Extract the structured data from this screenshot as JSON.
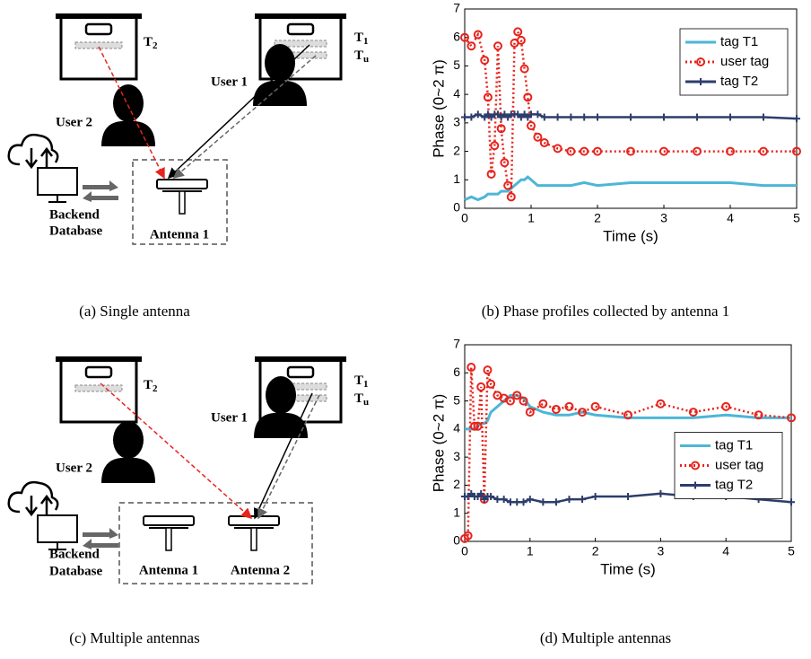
{
  "chart_data": [
    {
      "type": "line",
      "xlabel": "Time (s)",
      "ylabel": "Phase (0~2 π)",
      "x": [
        0,
        0.1,
        0.2,
        0.3,
        0.35,
        0.4,
        0.45,
        0.5,
        0.55,
        0.6,
        0.65,
        0.7,
        0.75,
        0.8,
        0.85,
        0.9,
        0.95,
        1.0,
        1.1,
        1.2,
        1.4,
        1.6,
        1.8,
        2.0,
        2.5,
        3.0,
        3.5,
        4.0,
        4.5,
        5.0
      ],
      "series": [
        {
          "name": "tag T1",
          "color": "#4cb6d6",
          "marker": "none",
          "line_style": "solid",
          "values": [
            0.3,
            0.4,
            0.3,
            0.4,
            0.5,
            0.5,
            0.5,
            0.5,
            0.6,
            0.6,
            0.6,
            0.7,
            0.8,
            0.9,
            1.0,
            1.0,
            1.1,
            1.0,
            0.8,
            0.8,
            0.8,
            0.8,
            0.9,
            0.8,
            0.9,
            0.9,
            0.9,
            0.9,
            0.8,
            0.8
          ]
        },
        {
          "name": "user tag",
          "color": "#e8231c",
          "marker": "o",
          "line_style": "dotted",
          "values": [
            6.0,
            5.7,
            6.1,
            5.2,
            3.9,
            1.2,
            2.2,
            5.7,
            2.8,
            1.6,
            0.8,
            0.4,
            5.8,
            6.2,
            5.9,
            4.9,
            3.9,
            2.9,
            2.5,
            2.3,
            2.1,
            2.0,
            2.0,
            2.0,
            2.0,
            2.0,
            2.0,
            2.0,
            2.0,
            2.0
          ]
        },
        {
          "name": "tag T2",
          "color": "#2d3d6c",
          "marker": "+",
          "line_style": "solid",
          "values": [
            3.2,
            3.2,
            3.3,
            3.2,
            3.3,
            3.2,
            3.3,
            3.3,
            3.2,
            3.3,
            3.2,
            3.3,
            3.3,
            3.3,
            3.2,
            3.3,
            3.2,
            3.3,
            3.3,
            3.2,
            3.2,
            3.2,
            3.2,
            3.2,
            3.2,
            3.2,
            3.2,
            3.2,
            3.2,
            3.15
          ]
        }
      ],
      "xlim": [
        0,
        5
      ],
      "xticks": [
        0,
        1,
        2,
        3,
        4,
        5
      ],
      "ylim": [
        0,
        7
      ],
      "yticks": [
        0,
        1,
        2,
        3,
        4,
        5,
        6,
        7
      ],
      "legend": "upper right"
    },
    {
      "type": "line",
      "xlabel": "Time (s)",
      "ylabel": "Phase (0~2 π)",
      "x": [
        0,
        0.05,
        0.1,
        0.15,
        0.2,
        0.25,
        0.3,
        0.35,
        0.4,
        0.5,
        0.6,
        0.7,
        0.8,
        0.9,
        1.0,
        1.2,
        1.4,
        1.6,
        1.8,
        2.0,
        2.5,
        3.0,
        3.5,
        4.0,
        4.5,
        5.0
      ],
      "series": [
        {
          "name": "tag T1",
          "color": "#4cb6d6",
          "marker": "none",
          "line_style": "solid",
          "values": [
            4.0,
            4.0,
            4.0,
            4.0,
            4.1,
            4.2,
            4.2,
            4.3,
            4.6,
            4.8,
            5.0,
            5.2,
            5.2,
            5.1,
            4.8,
            4.6,
            4.5,
            4.5,
            4.6,
            4.5,
            4.4,
            4.4,
            4.4,
            4.5,
            4.4,
            4.4
          ]
        },
        {
          "name": "user tag",
          "color": "#e8231c",
          "marker": "o",
          "line_style": "dotted",
          "values": [
            0.1,
            0.2,
            6.2,
            4.1,
            4.1,
            5.5,
            1.5,
            6.1,
            5.6,
            5.2,
            5.1,
            5.0,
            5.2,
            5.0,
            4.6,
            4.9,
            4.7,
            4.8,
            4.6,
            4.8,
            4.5,
            4.9,
            4.6,
            4.8,
            4.5,
            4.4
          ]
        },
        {
          "name": "tag T2",
          "color": "#2d3d6c",
          "marker": "+",
          "line_style": "solid",
          "values": [
            1.6,
            1.6,
            1.7,
            1.6,
            1.6,
            1.7,
            1.5,
            1.6,
            1.6,
            1.5,
            1.5,
            1.4,
            1.4,
            1.4,
            1.5,
            1.4,
            1.4,
            1.5,
            1.5,
            1.6,
            1.6,
            1.7,
            1.6,
            1.6,
            1.5,
            1.4
          ]
        }
      ],
      "xlim": [
        0,
        5
      ],
      "xticks": [
        0,
        1,
        2,
        3,
        4,
        5
      ],
      "ylim": [
        0,
        7
      ],
      "yticks": [
        0,
        1,
        2,
        3,
        4,
        5,
        6,
        7
      ],
      "legend": "center right"
    }
  ],
  "diagrams": [
    {
      "tags": [
        {
          "letter": "T",
          "sub": "2"
        },
        {
          "letter": "T",
          "sub": "1"
        },
        {
          "letter": "T",
          "sub": "u"
        }
      ],
      "users": [
        "User 1",
        "User 2"
      ],
      "backend": [
        "Backend",
        "Database"
      ],
      "antennas": [
        "Antenna 1"
      ]
    },
    {
      "tags": [
        {
          "letter": "T",
          "sub": "2"
        },
        {
          "letter": "T",
          "sub": "1"
        },
        {
          "letter": "T",
          "sub": "u"
        }
      ],
      "users": [
        "User 1",
        "User 2"
      ],
      "backend": [
        "Backend",
        "Database"
      ],
      "antennas": [
        "Antenna 1",
        "Antenna 2"
      ]
    }
  ],
  "captions": [
    "(a) Single antenna",
    "(b) Phase profiles collected by antenna 1",
    "(c) Multiple antennas",
    "(d) Multiple antennas"
  ]
}
